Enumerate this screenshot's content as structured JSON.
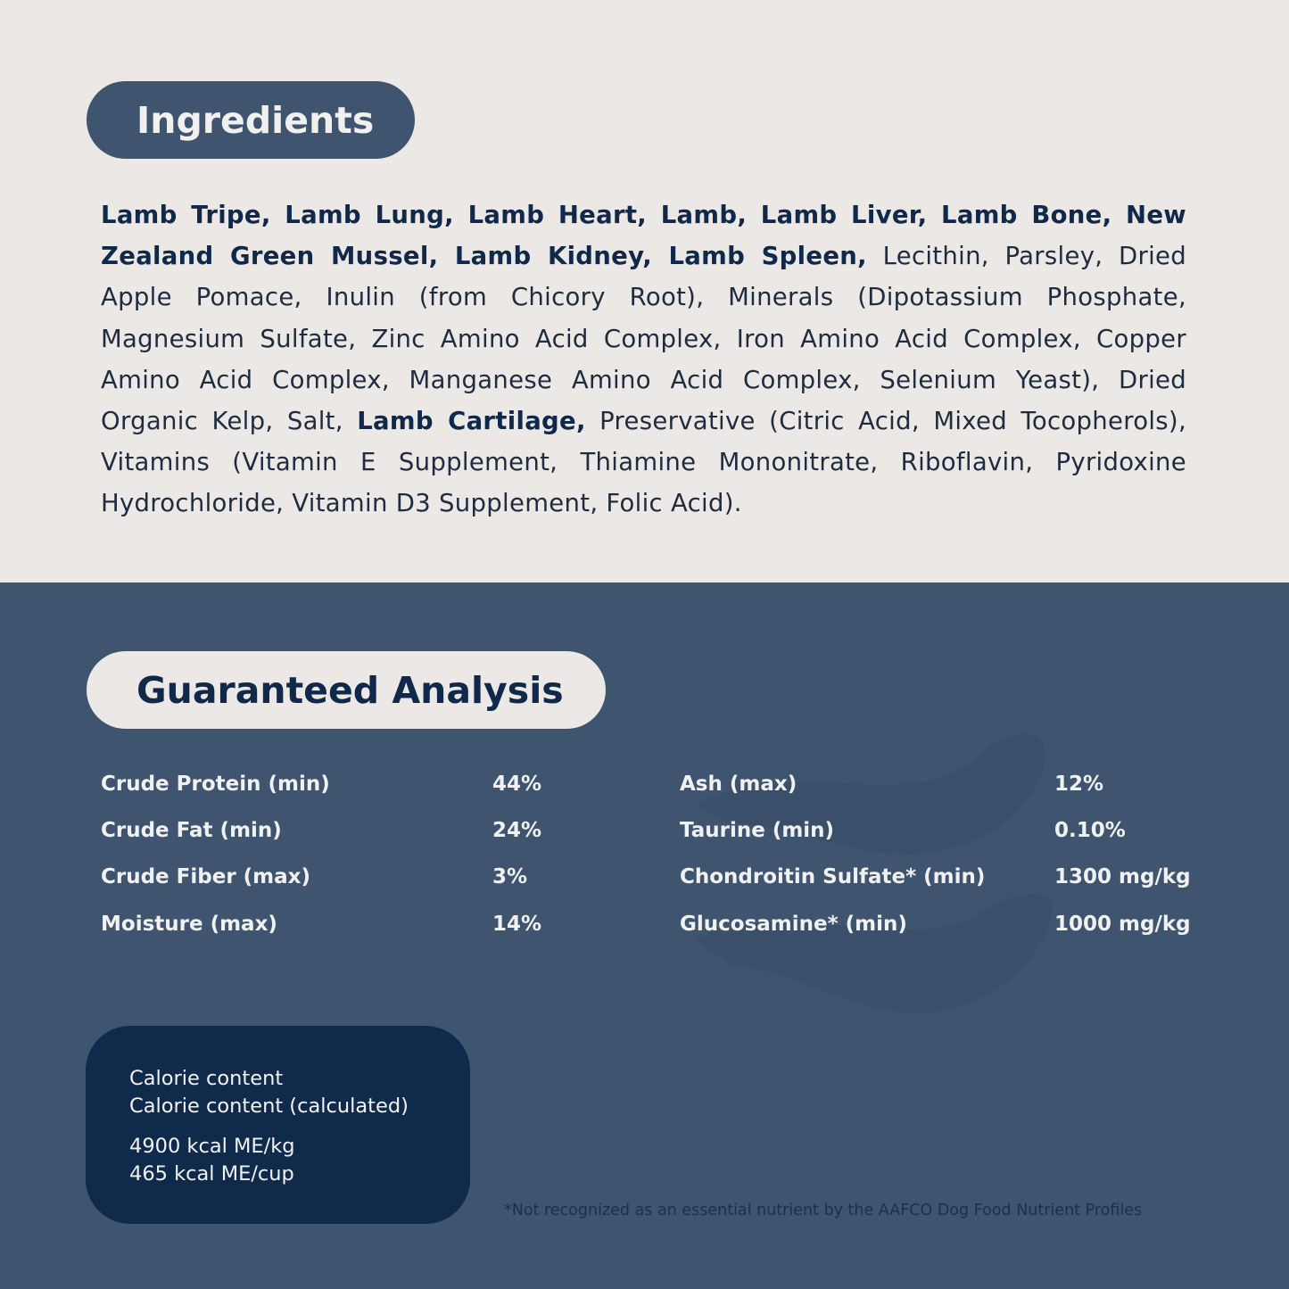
{
  "ingredients": {
    "title": "Ingredients",
    "bold_1": "Lamb Tripe, Lamb Lung, Lamb Heart, Lamb, Lamb Liver, Lamb Bone, New Zealand Green Mussel, Lamb Kidney, Lamb Spleen,",
    "regular_1": " Lecithin, Parsley, Dried Apple Pomace, Inulin (from Chicory Root), Minerals (Dipotassium Phosphate, Magnesium Sulfate, Zinc Amino Acid Complex, Iron Amino Acid Complex, Copper Amino Acid Complex, Manganese Amino Acid Complex, Selenium Yeast), Dried Organic Kelp, Salt, ",
    "bold_2": "Lamb Cartilage,",
    "regular_2": " Preservative (Citric Acid, Mixed Tocopherols), Vitamins (Vitamin E Supplement, Thiamine Mononitrate, Riboflavin, Pyridoxine Hydrochloride, Vitamin D3 Supplement, Folic Acid)."
  },
  "analysis": {
    "title": "Guaranteed Analysis",
    "left": [
      {
        "label": "Crude Protein (min)",
        "value": "44%"
      },
      {
        "label": "Crude Fat (min)",
        "value": "24%"
      },
      {
        "label": "Crude Fiber (max)",
        "value": "3%"
      },
      {
        "label": "Moisture (max)",
        "value": "14%"
      }
    ],
    "right": [
      {
        "label": "Ash (max)",
        "value": "12%"
      },
      {
        "label": "Taurine (min)",
        "value": "0.10%"
      },
      {
        "label": "Chondroitin Sulfate* (min)",
        "value": "1300 mg/kg"
      },
      {
        "label": "Glucosamine* (min)",
        "value": "1000 mg/kg"
      }
    ]
  },
  "calorie": {
    "line1": "Calorie content",
    "line2": "Calorie content (calculated)",
    "value1": "4900 kcal ME/kg",
    "value2": "465 kcal ME/cup"
  },
  "footnote": "*Not recognized as an essential nutrient by the AAFCO Dog Food Nutrient Profiles",
  "colors": {
    "cream": "#ebe8e5",
    "slate_blue": "#3e546f",
    "navy": "#0f2a4b"
  },
  "decoration": "wave-icon"
}
